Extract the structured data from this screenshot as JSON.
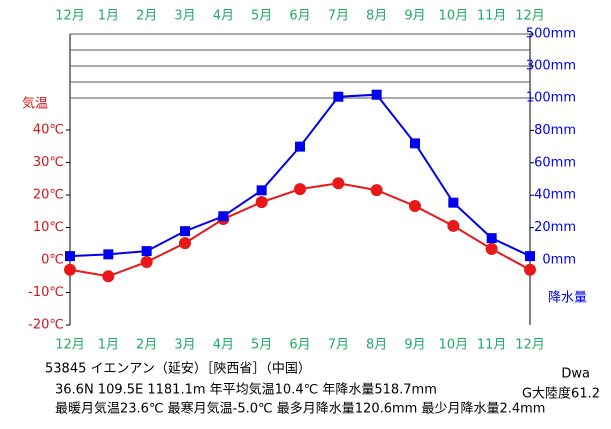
{
  "chart_data": {
    "type": "climograph",
    "categories": [
      "12月",
      "1月",
      "2月",
      "3月",
      "4月",
      "5月",
      "6月",
      "7月",
      "8月",
      "9月",
      "10月",
      "11月",
      "12月"
    ],
    "series": [
      {
        "name": "気温",
        "color": "#e81818",
        "axis": "y",
        "values": [
          -3.0,
          -5.0,
          -0.6,
          5.2,
          12.6,
          17.8,
          21.8,
          23.6,
          21.5,
          16.6,
          10.5,
          3.4,
          -3.0
        ]
      },
      {
        "name": "降水量",
        "color": "#0000ee",
        "axis": "y2",
        "values": [
          2.4,
          3.5,
          5.5,
          17.8,
          27,
          43,
          70,
          108,
          120.6,
          72,
          35.4,
          13.5,
          2.4
        ]
      }
    ],
    "ylim": [
      -20,
      40
    ],
    "yticks": [
      {
        "value": 40,
        "label": "40℃"
      },
      {
        "value": 30,
        "label": "30℃"
      },
      {
        "value": 20,
        "label": "20℃"
      },
      {
        "value": 10,
        "label": "10℃"
      },
      {
        "value": 0,
        "label": "0℃"
      },
      {
        "value": -10,
        "label": "-10℃"
      },
      {
        "value": -20,
        "label": "-20℃"
      }
    ],
    "y2lim": [
      0,
      500
    ],
    "y2_scale_break": 100,
    "y2ticks": [
      {
        "value": 500,
        "label": "500mm"
      },
      {
        "value": 300,
        "label": "300mm"
      },
      {
        "value": 100,
        "label": "100mm"
      },
      {
        "value": 80,
        "label": "80mm"
      },
      {
        "value": 60,
        "label": "60mm"
      },
      {
        "value": 40,
        "label": "40mm"
      },
      {
        "value": 20,
        "label": "20mm"
      },
      {
        "value": 0,
        "label": "0mm"
      }
    ],
    "y2grid": [
      100,
      200,
      300,
      400,
      500
    ],
    "station": "53845  イエンアン（延安）［陝西省］（中国）",
    "info1": "36.6N  109.5E  1181.1m  年平均気温10.4℃  年降水量518.7mm",
    "info2": "最暖月気温23.6℃  最寒月気温-5.0℃  最多月降水量120.6mm  最少月降水量2.4mm",
    "climate": "Dwa",
    "continentality": "G大陸度61.2"
  }
}
